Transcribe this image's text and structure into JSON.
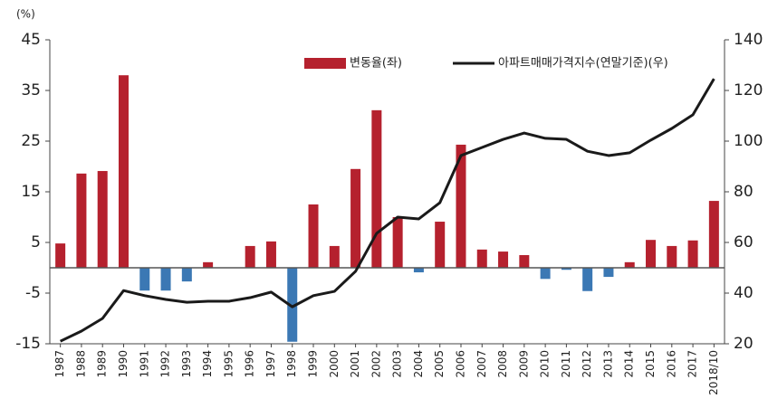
{
  "chart_data": {
    "type": "bar-line",
    "y_unit_label": "(%)",
    "categories": [
      "1987",
      "1988",
      "1989",
      "1990",
      "1991",
      "1992",
      "1993",
      "1994",
      "1995",
      "1996",
      "1997",
      "1998",
      "1999",
      "2000",
      "2001",
      "2002",
      "2003",
      "2004",
      "2005",
      "2006",
      "2007",
      "2008",
      "2009",
      "2010",
      "2011",
      "2012",
      "2013",
      "2014",
      "2015",
      "2016",
      "2017",
      "2018/10"
    ],
    "series": [
      {
        "name": "변동율(좌)",
        "type": "bar",
        "color": "#b5212e",
        "negative_color": "#3b78b4",
        "values": [
          4.8,
          18.6,
          19.1,
          38.0,
          -4.5,
          -4.5,
          -2.7,
          1.1,
          0,
          4.3,
          5.2,
          -14.6,
          12.5,
          4.3,
          19.5,
          31.1,
          10.0,
          -0.9,
          9.1,
          24.3,
          3.6,
          3.2,
          2.5,
          -2.2,
          -0.4,
          -4.6,
          -1.8,
          1.1,
          5.5,
          4.3,
          5.4,
          13.2
        ]
      },
      {
        "name": "아파트매매가격지수(연말기준)(우)",
        "type": "line",
        "axis": "y2",
        "color": "#1a1a1a",
        "values": [
          21.0,
          25.0,
          30.0,
          41.0,
          39.0,
          37.5,
          36.4,
          36.8,
          36.8,
          38.2,
          40.4,
          34.6,
          39.0,
          40.7,
          48.6,
          63.6,
          70.0,
          69.3,
          75.7,
          94.3,
          97.5,
          100.7,
          103.2,
          101.1,
          100.7,
          96.0,
          94.3,
          95.4,
          100.4,
          105.0,
          110.4,
          124.6
        ]
      }
    ],
    "ylim": [
      -15,
      45
    ],
    "yticks": [
      -15,
      -5,
      5,
      15,
      25,
      35,
      45
    ],
    "y2lim": [
      20,
      140
    ],
    "y2ticks": [
      20,
      40,
      60,
      80,
      100,
      120,
      140
    ]
  }
}
